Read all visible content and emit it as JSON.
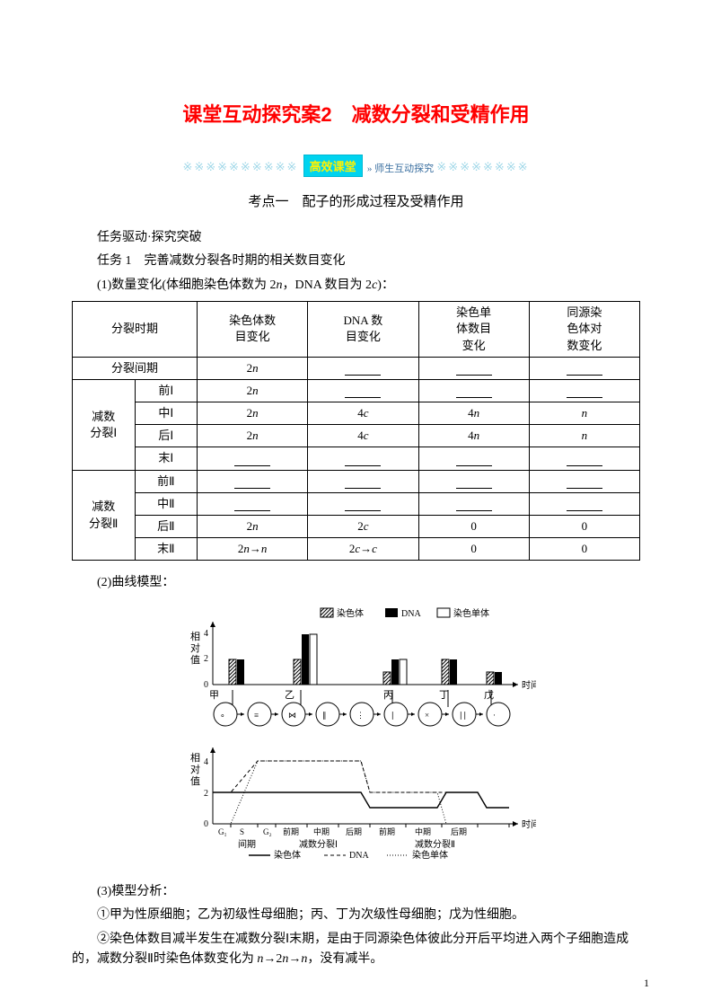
{
  "title": "课堂互动探究案2　减数分裂和受精作用",
  "banner": {
    "label": "高效课堂",
    "sub": "» 师生互动探究"
  },
  "section": {
    "heading": "考点一　配子的形成过程及受精作用"
  },
  "task_intro": {
    "line1": "任务驱动·探究突破",
    "line2": "任务 1　完善减数分裂各时期的相关数目变化",
    "line3_prefix": "(1)数量变化(体细胞染色体数为 2",
    "line3_mid": "，DNA 数目为 2",
    "line3_suffix": ")："
  },
  "table": {
    "headers": [
      "分裂时期",
      "染色体数\n目变化",
      "DNA 数\n目变化",
      "染色单\n体数目\n变化",
      "同源染\n色体对\n数变化"
    ],
    "groups": [
      {
        "name": "分裂间期",
        "rows": [
          {
            "phase": "",
            "cells": [
              "2n",
              "_",
              "_",
              "_"
            ]
          }
        ],
        "merge_phase": true
      },
      {
        "name": "减数\n分裂Ⅰ",
        "rows": [
          {
            "phase": "前Ⅰ",
            "cells": [
              "2n",
              "_",
              "_",
              "_"
            ]
          },
          {
            "phase": "中Ⅰ",
            "cells": [
              "2n",
              "4c",
              "4n",
              "n"
            ]
          },
          {
            "phase": "后Ⅰ",
            "cells": [
              "2n",
              "4c",
              "4n",
              "n"
            ]
          },
          {
            "phase": "末Ⅰ",
            "cells": [
              "_",
              "_",
              "_",
              "_"
            ]
          }
        ]
      },
      {
        "name": "减数\n分裂Ⅱ",
        "rows": [
          {
            "phase": "前Ⅱ",
            "cells": [
              "_",
              "_",
              "_",
              "_"
            ]
          },
          {
            "phase": "中Ⅱ",
            "cells": [
              "_",
              "_",
              "_",
              "_"
            ]
          },
          {
            "phase": "后Ⅱ",
            "cells": [
              "2n",
              "2c",
              "0",
              "0"
            ]
          },
          {
            "phase": "末Ⅱ",
            "cells": [
              "2n→n",
              "2c→c",
              "0",
              "0"
            ]
          }
        ]
      }
    ]
  },
  "part2_label": "(2)曲线模型：",
  "diagram": {
    "legend": {
      "chrom": "染色体",
      "dna": "DNA",
      "chromatid": "染色单体"
    },
    "yaxis_label": "相\n对\n值",
    "yticks_top": [
      "4",
      "2",
      "0"
    ],
    "yticks_bot": [
      "4",
      "2",
      "0"
    ],
    "top_labels": [
      "甲",
      "乙",
      "丙",
      "丁",
      "戊"
    ],
    "top_right": "时间",
    "bot_xticks": [
      "G₁",
      "S",
      "G₂",
      "前期",
      "中期",
      "后期",
      "前期",
      "中期",
      "后期"
    ],
    "bot_groups": [
      "间期",
      "减数分裂Ⅰ",
      "减数分裂Ⅱ"
    ],
    "bot_right": "时间",
    "bottom_legend": [
      "染色体",
      "DNA",
      "染色单体"
    ]
  },
  "part3": {
    "label": "(3)模型分析：",
    "p1": "①甲为性原细胞；乙为初级性母细胞；丙、丁为次级性母细胞；戊为性细胞。",
    "p2_a": "②染色体数目减半发生在减数分裂Ⅰ末期，是由于同源染色体彼此分开后平均进入两个子细胞造成的，减数分裂Ⅱ时染色体数变化为 ",
    "p2_b": "→2",
    "p2_c": "→",
    "p2_d": "，没有减半。"
  },
  "page_number": "1",
  "colors": {
    "title": "#ff0000",
    "banner_bg": "#00d3ef",
    "banner_text": "#fff200",
    "banner_sub": "#3a6fa0",
    "dots": "#9fd7e8",
    "text": "#000000",
    "border": "#000000"
  },
  "fonts": {
    "title_size_pt": 16,
    "body_size_pt": 10.5
  }
}
